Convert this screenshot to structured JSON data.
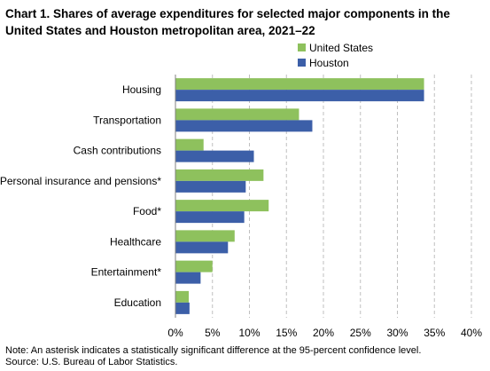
{
  "title_line1": "Chart 1. Shares of average expenditures for selected major components in the",
  "title_line2": "United States and Houston metropolitan area, 2021–22",
  "note": "Note: An asterisk indicates a statistically significant difference at the 95-percent confidence level.",
  "source": "Source: U.S. Bureau of Labor Statistics.",
  "colors": {
    "us": "#8ec15d",
    "houston": "#3c5fa8",
    "grid": "#bfbfbf"
  },
  "chart_data": {
    "type": "bar",
    "orientation": "horizontal",
    "title": "Chart 1. Shares of average expenditures for selected major components in the United States and Houston metropolitan area, 2021–22",
    "categories": [
      "Housing",
      "Transportation",
      "Cash contributions",
      "Personal insurance and pensions*",
      "Food*",
      "Healthcare",
      "Entertainment*",
      "Education"
    ],
    "series": [
      {
        "name": "United States",
        "values": [
          33.6,
          16.7,
          3.8,
          11.9,
          12.6,
          8.0,
          5.0,
          1.8
        ]
      },
      {
        "name": "Houston",
        "values": [
          33.6,
          18.5,
          10.6,
          9.5,
          9.3,
          7.1,
          3.4,
          1.9
        ]
      }
    ],
    "xlim": [
      0,
      40
    ],
    "xticks": [
      0,
      5,
      10,
      15,
      20,
      25,
      30,
      35,
      40
    ],
    "xtick_labels": [
      "0%",
      "5%",
      "10%",
      "15%",
      "20%",
      "25%",
      "30%",
      "35%",
      "40%"
    ],
    "grid": "vertical dashed",
    "legend_position": "top-right"
  }
}
